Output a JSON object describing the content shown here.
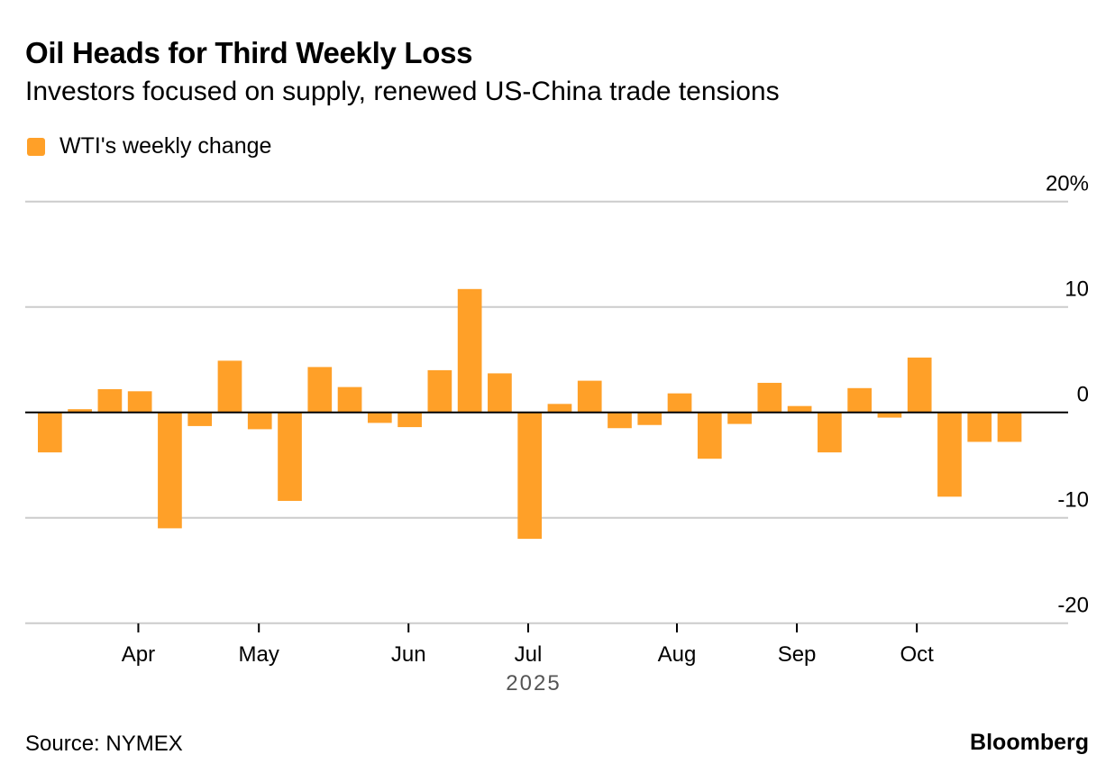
{
  "header": {
    "title": "Oil Heads for Third Weekly Loss",
    "subtitle": "Investors focused on supply, renewed US-China trade tensions"
  },
  "legend": [
    {
      "label": "WTI's weekly change",
      "color": "#FFA028"
    }
  ],
  "footer": {
    "source": "Source: NYMEX",
    "brand": "Bloomberg"
  },
  "chart_data": {
    "type": "bar",
    "title": "Oil Heads for Third Weekly Loss",
    "subtitle": "Investors focused on supply, renewed US-China trade tensions",
    "xlabel": "2025",
    "ylabel": "",
    "ylim": [
      -20,
      20
    ],
    "yticks": [
      20,
      10,
      0,
      -10,
      -20
    ],
    "ytick_labels": [
      "20%",
      "10",
      "0",
      "-10",
      "-20"
    ],
    "x_month_ticks": [
      {
        "label": "Apr",
        "index": 3.35
      },
      {
        "label": "May",
        "index": 7.37
      },
      {
        "label": "Jun",
        "index": 12.36
      },
      {
        "label": "Jul",
        "index": 16.35
      },
      {
        "label": "Aug",
        "index": 21.31
      },
      {
        "label": "Sep",
        "index": 25.31
      },
      {
        "label": "Oct",
        "index": 29.31
      }
    ],
    "grid": true,
    "legend_position": "top-left",
    "bar_color": "#FFA028",
    "series": [
      {
        "name": "WTI's weekly change",
        "values": [
          -3.8,
          0.3,
          2.2,
          2.0,
          -11.0,
          -1.3,
          4.9,
          -1.6,
          -8.4,
          4.3,
          2.4,
          -1.0,
          -1.4,
          4.0,
          11.7,
          3.7,
          -12.0,
          0.8,
          3.0,
          -1.5,
          -1.2,
          1.8,
          -4.4,
          -1.1,
          2.8,
          0.6,
          -3.8,
          2.3,
          -0.5,
          5.2,
          -8.0,
          -2.8,
          -2.8
        ]
      }
    ]
  }
}
